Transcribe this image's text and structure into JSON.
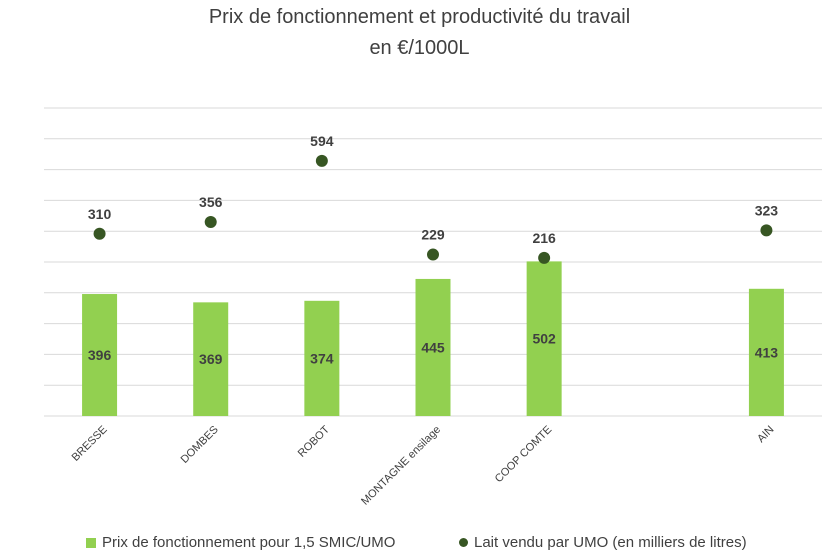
{
  "chart_data": {
    "type": "bar",
    "title_line1": "Prix de fonctionnement et productivité du travail",
    "title_line2": "en €/1000L",
    "categories": [
      "BRESSE",
      "DOMBES",
      "ROBOT",
      "MONTAGNE ensilage",
      "COOP COMTE",
      "",
      "AIN"
    ],
    "series": [
      {
        "name": "Prix de fonctionnement  pour 1,5 SMIC/UMO",
        "kind": "bar",
        "color": "#92D050",
        "values": [
          396,
          369,
          374,
          445,
          502,
          null,
          413
        ]
      },
      {
        "name": "Lait vendu par UMO (en milliers de litres)",
        "kind": "scatter",
        "color": "#375623",
        "values": [
          310,
          356,
          594,
          229,
          216,
          null,
          323
        ]
      }
    ],
    "grid": true,
    "legend_position": "bottom"
  }
}
